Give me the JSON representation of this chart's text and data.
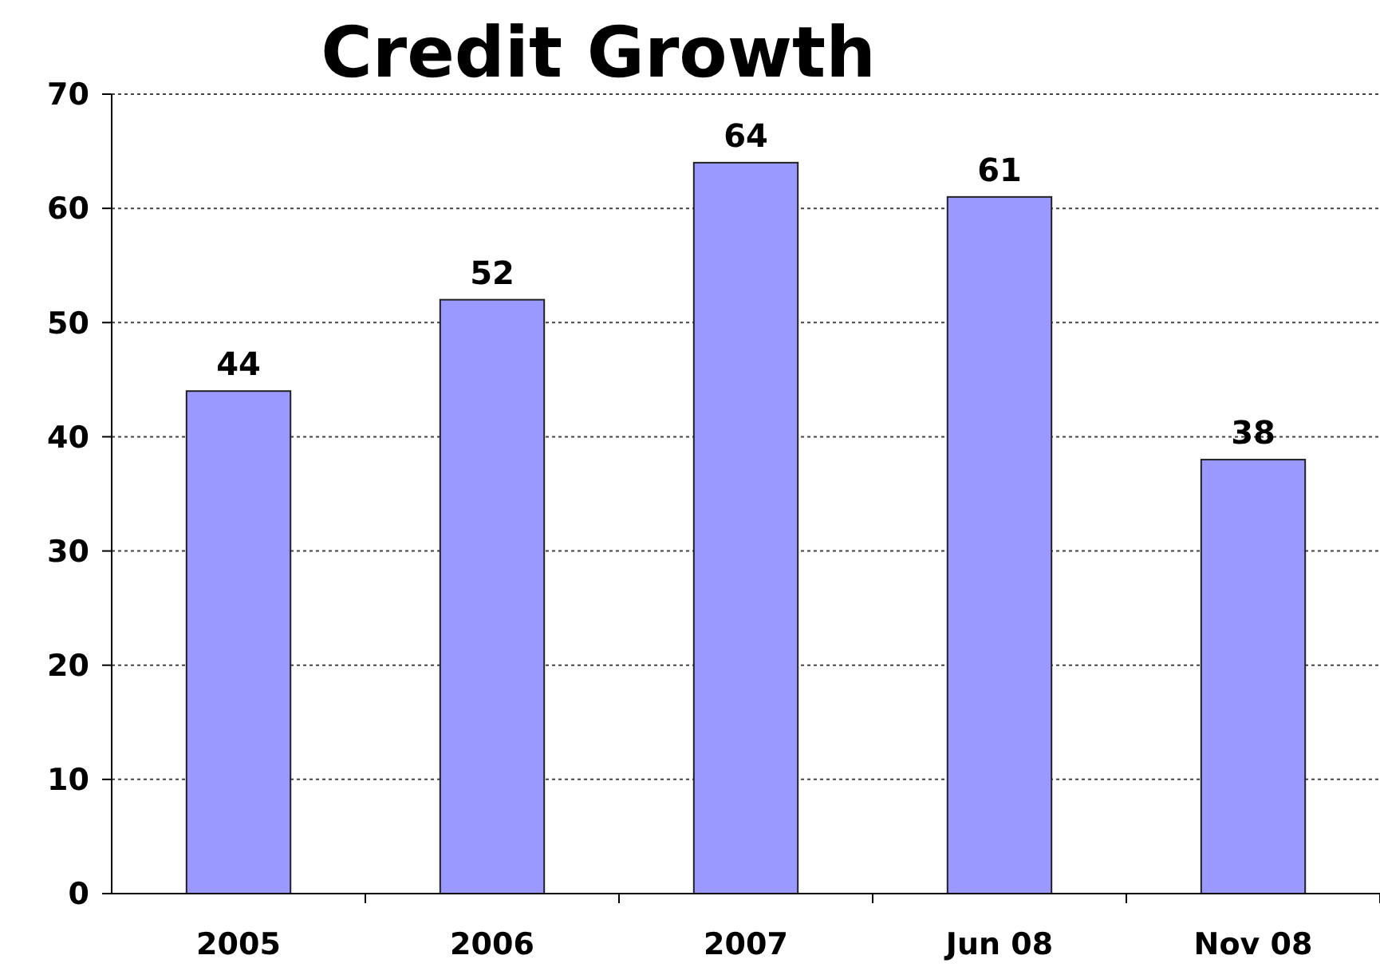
{
  "chart_data": {
    "type": "bar",
    "title": "Credit Growth",
    "categories": [
      "2005",
      "2006",
      "2007",
      "Jun 08",
      "Nov 08"
    ],
    "values": [
      44,
      52,
      64,
      61,
      38
    ],
    "color": "#9999ff",
    "ylim": [
      0,
      70
    ],
    "yticks": [
      0,
      10,
      20,
      30,
      40,
      50,
      60,
      70
    ],
    "grid": "y",
    "data_labels": true
  }
}
